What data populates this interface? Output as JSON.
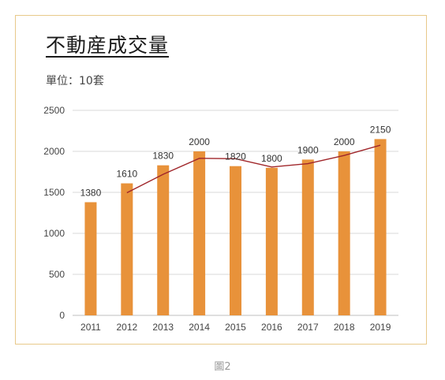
{
  "title": "不動産成交量",
  "unit_label": "單位：10套",
  "caption": "圖2",
  "colors": {
    "bar": "#e8923a",
    "line": "#a0262a",
    "grid": "#d9d9d9",
    "frame": "#e8c98a"
  },
  "chart_data": {
    "type": "bar",
    "categories": [
      "2011",
      "2012",
      "2013",
      "2014",
      "2015",
      "2016",
      "2017",
      "2018",
      "2019"
    ],
    "values": [
      1380,
      1610,
      1830,
      2000,
      1820,
      1800,
      1900,
      2000,
      2150
    ],
    "data_labels": [
      "1380",
      "1610",
      "1830",
      "2000",
      "1820",
      "1800",
      "1900",
      "2000",
      "2150"
    ],
    "ylim": [
      0,
      2500
    ],
    "yticks": [
      0,
      500,
      1000,
      1500,
      2000,
      2500
    ],
    "ytick_labels": [
      "0",
      "500",
      "1000",
      "1500",
      "2000",
      "2500"
    ],
    "grid": true,
    "trendline": {
      "type": "moving-average",
      "x": [
        "2012",
        "2013",
        "2014",
        "2015",
        "2016",
        "2017",
        "2018",
        "2019"
      ],
      "values": [
        1495,
        1720,
        1915,
        1910,
        1810,
        1850,
        1950,
        2075
      ]
    }
  }
}
